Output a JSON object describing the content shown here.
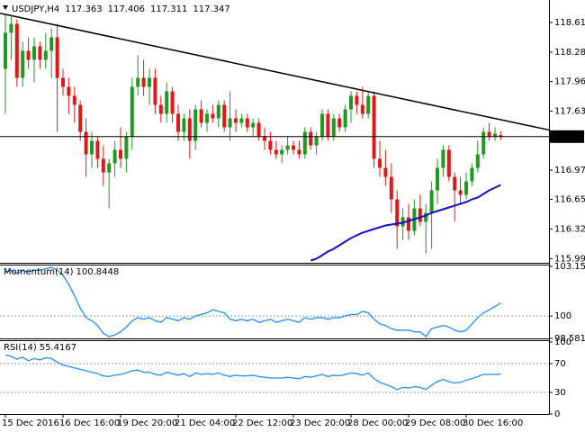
{
  "chart_data": [
    {
      "type": "candlestick",
      "title": "USDJPY,H4",
      "categories": [
        "15 Dec 2016",
        null,
        null,
        null,
        null,
        null,
        null,
        null,
        null,
        null,
        "16 Dec 16:00",
        null,
        null,
        null,
        null,
        null,
        null,
        null,
        null,
        null,
        "19 Dec 20:00",
        null,
        null,
        null,
        null,
        null,
        null,
        null,
        null,
        null,
        "21 Dec 04:00",
        null,
        null,
        null,
        null,
        null,
        null,
        null,
        null,
        null,
        "22 Dec 12:00",
        null,
        null,
        null,
        null,
        null,
        null,
        null,
        null,
        null,
        "23 Dec 20:00",
        null,
        null,
        null,
        null,
        null,
        null,
        null,
        null,
        null,
        "28 Dec 00:00",
        null,
        null,
        null,
        null,
        null,
        null,
        null,
        null,
        null,
        "29 Dec 08:00",
        null,
        null,
        null,
        null,
        null,
        null,
        null,
        null,
        null,
        "30 Dec 16:00",
        null,
        null,
        null,
        null,
        null,
        null
      ],
      "open": [
        118.1,
        118.5,
        118.6,
        118.0,
        118.3,
        118.2,
        118.35,
        118.2,
        118.3,
        118.45,
        118.0,
        117.9,
        117.8,
        117.7,
        117.4,
        117.15,
        117.3,
        117.1,
        116.95,
        117.05,
        117.2,
        117.1,
        117.35,
        117.9,
        118.0,
        117.9,
        118.0,
        117.7,
        117.6,
        117.85,
        117.6,
        117.4,
        117.55,
        117.3,
        117.65,
        117.5,
        117.6,
        117.55,
        117.7,
        117.45,
        117.55,
        117.5,
        117.55,
        117.45,
        117.5,
        117.35,
        117.3,
        117.2,
        117.15,
        117.2,
        117.25,
        117.2,
        117.15,
        117.4,
        117.25,
        117.35,
        117.6,
        117.35,
        117.55,
        117.45,
        117.65,
        117.8,
        117.7,
        117.6,
        117.8,
        117.1,
        117.0,
        116.9,
        116.65,
        116.35,
        116.45,
        116.3,
        116.55,
        116.4,
        116.5,
        116.75,
        117.0,
        117.2,
        116.9,
        116.75,
        116.7,
        116.85,
        117.0,
        117.15,
        117.4,
        117.35,
        117.363
      ],
      "high": [
        118.7,
        118.68,
        118.65,
        118.4,
        118.45,
        118.45,
        118.4,
        118.5,
        118.55,
        118.6,
        118.1,
        118.0,
        117.9,
        117.75,
        117.55,
        117.4,
        117.35,
        117.25,
        117.1,
        117.3,
        117.45,
        117.4,
        118.0,
        118.25,
        118.2,
        118.1,
        118.1,
        117.8,
        117.95,
        117.9,
        117.7,
        117.6,
        117.65,
        117.7,
        117.75,
        117.65,
        117.7,
        117.75,
        117.75,
        117.85,
        117.65,
        117.6,
        117.6,
        117.55,
        117.55,
        117.45,
        117.4,
        117.3,
        117.25,
        117.35,
        117.3,
        117.3,
        117.45,
        117.45,
        117.4,
        117.65,
        117.65,
        117.6,
        117.6,
        117.7,
        117.85,
        117.85,
        117.9,
        117.85,
        117.85,
        117.3,
        117.2,
        117.05,
        116.75,
        116.55,
        116.6,
        116.65,
        116.7,
        116.6,
        116.85,
        117.1,
        117.25,
        117.25,
        116.95,
        116.9,
        116.95,
        117.05,
        117.3,
        117.45,
        117.5,
        117.45,
        117.406
      ],
      "low": [
        117.6,
        118.2,
        117.9,
        117.9,
        118.1,
        117.95,
        118.1,
        118.1,
        118.0,
        117.4,
        117.8,
        117.6,
        117.5,
        117.3,
        116.9,
        117.0,
        117.0,
        116.8,
        116.55,
        116.9,
        117.0,
        116.95,
        117.2,
        117.8,
        117.8,
        117.7,
        117.6,
        117.5,
        117.5,
        117.5,
        117.3,
        117.3,
        117.1,
        117.2,
        117.45,
        117.4,
        117.5,
        117.45,
        117.4,
        117.3,
        117.4,
        117.45,
        117.4,
        117.35,
        117.3,
        117.2,
        117.15,
        117.1,
        117.05,
        117.15,
        117.15,
        117.1,
        117.1,
        117.2,
        117.15,
        117.3,
        117.3,
        117.3,
        117.4,
        117.4,
        117.5,
        117.6,
        117.55,
        117.55,
        117.0,
        116.9,
        116.8,
        116.5,
        116.1,
        116.2,
        116.2,
        116.25,
        116.35,
        116.05,
        116.1,
        116.6,
        116.9,
        116.85,
        116.4,
        116.6,
        116.65,
        116.8,
        116.95,
        117.1,
        117.3,
        117.3,
        117.311
      ],
      "close": [
        118.5,
        118.6,
        118.0,
        118.3,
        118.2,
        118.35,
        118.2,
        118.3,
        118.45,
        118.0,
        117.9,
        117.8,
        117.7,
        117.4,
        117.15,
        117.3,
        117.1,
        116.95,
        117.05,
        117.2,
        117.1,
        117.35,
        117.9,
        118.0,
        117.9,
        118.0,
        117.7,
        117.6,
        117.85,
        117.6,
        117.4,
        117.55,
        117.3,
        117.65,
        117.5,
        117.6,
        117.55,
        117.7,
        117.45,
        117.55,
        117.5,
        117.55,
        117.45,
        117.5,
        117.35,
        117.3,
        117.2,
        117.15,
        117.2,
        117.25,
        117.2,
        117.15,
        117.4,
        117.25,
        117.35,
        117.6,
        117.35,
        117.55,
        117.45,
        117.65,
        117.8,
        117.7,
        117.6,
        117.8,
        117.1,
        117.0,
        116.9,
        116.65,
        116.35,
        116.45,
        116.3,
        116.55,
        116.4,
        116.5,
        116.75,
        117.0,
        117.2,
        116.9,
        116.75,
        116.7,
        116.85,
        117.0,
        117.15,
        117.4,
        117.35,
        117.38,
        117.347
      ],
      "up_color": "#1f9a1f",
      "down_color": "#e01818",
      "ylim": [
        115.945,
        118.865
      ],
      "yticks": [
        118.615,
        {
          "value": 118.285,
          "label": "118.285"
        },
        {
          "value": 117.96,
          "label": "117.960"
        },
        {
          "value": 117.63,
          "label": "117.630"
        },
        116.975,
        {
          "value": 116.65,
          "label": "116.650"
        },
        {
          "value": 116.32,
          "label": "116.320"
        },
        {
          "value": 115.99,
          "label": "115.990"
        }
      ],
      "last_price_line": true,
      "overlays": [
        {
          "type": "line",
          "color": "#1010c8",
          "values": [
            null,
            null,
            null,
            null,
            null,
            null,
            null,
            null,
            null,
            null,
            null,
            null,
            null,
            null,
            null,
            null,
            null,
            null,
            null,
            null,
            null,
            null,
            null,
            null,
            null,
            null,
            null,
            null,
            null,
            null,
            null,
            null,
            null,
            null,
            null,
            null,
            null,
            null,
            null,
            null,
            null,
            null,
            null,
            null,
            null,
            null,
            null,
            null,
            null,
            null,
            null,
            null,
            null,
            115.97,
            115.99,
            116.03,
            116.07,
            116.1,
            116.14,
            116.18,
            116.22,
            116.25,
            116.28,
            116.3,
            116.32,
            116.34,
            116.36,
            116.37,
            116.38,
            116.39,
            116.41,
            116.43,
            116.45,
            116.47,
            116.5,
            116.52,
            116.54,
            116.56,
            116.58,
            116.6,
            116.62,
            116.65,
            116.67,
            116.71,
            116.75,
            116.78,
            116.81
          ]
        },
        {
          "type": "trendline",
          "color": "#000000",
          "x": [
            0,
            86
          ],
          "values": [
            118.705,
            117.535
          ]
        }
      ]
    },
    {
      "type": "line",
      "title": "Momentum(14)",
      "color": "#1e90ff",
      "values": [
        102.8,
        102.9,
        102.7,
        102.9,
        102.8,
        102.9,
        102.9,
        103.0,
        103.1,
        102.9,
        102.6,
        102.0,
        101.3,
        100.5,
        99.9,
        99.7,
        99.4,
        98.9,
        98.7,
        98.8,
        99.0,
        99.3,
        99.7,
        99.9,
        99.8,
        99.9,
        99.7,
        99.6,
        99.9,
        99.8,
        99.7,
        99.9,
        99.8,
        100.0,
        100.1,
        100.2,
        100.4,
        100.3,
        100.2,
        99.8,
        99.7,
        99.8,
        99.7,
        99.8,
        99.6,
        99.7,
        99.8,
        99.6,
        99.7,
        99.8,
        99.7,
        99.6,
        99.9,
        99.8,
        99.9,
        99.9,
        99.8,
        99.9,
        99.9,
        100.0,
        100.1,
        100.1,
        100.3,
        100.2,
        99.8,
        99.5,
        99.4,
        99.2,
        99.1,
        99.1,
        99.1,
        99.0,
        99.0,
        98.7,
        99.2,
        99.3,
        99.4,
        99.3,
        99.1,
        99.0,
        99.1,
        99.5,
        99.9,
        100.2,
        100.4,
        100.6,
        100.8448
      ],
      "ylim": [
        98.5815,
        103.1506
      ],
      "yticks": [
        103.1506,
        100,
        98.5815
      ],
      "level_lines": true
    },
    {
      "type": "line",
      "title": "RSI(14)",
      "color": "#1e90ff",
      "values": [
        82,
        80,
        76,
        79,
        74,
        77,
        75,
        78,
        77,
        72,
        68,
        66,
        64,
        62,
        60,
        58,
        56,
        53,
        52,
        54,
        55,
        57,
        60,
        61,
        58,
        58,
        55,
        54,
        58,
        56,
        54,
        56,
        52,
        57,
        55,
        56,
        55,
        57,
        54,
        52,
        54,
        53,
        53,
        54,
        52,
        51,
        50,
        50,
        50,
        51,
        50,
        49,
        52,
        51,
        53,
        55,
        52,
        54,
        53,
        55,
        57,
        56,
        54,
        57,
        49,
        44,
        41,
        38,
        34,
        37,
        36,
        38,
        37,
        34,
        40,
        45,
        48,
        45,
        43,
        44,
        47,
        49,
        52,
        55,
        55,
        55,
        55.4167
      ],
      "ylim": [
        0,
        100
      ],
      "yticks": [
        100,
        70,
        30,
        0
      ],
      "level_lines": true
    }
  ]
}
